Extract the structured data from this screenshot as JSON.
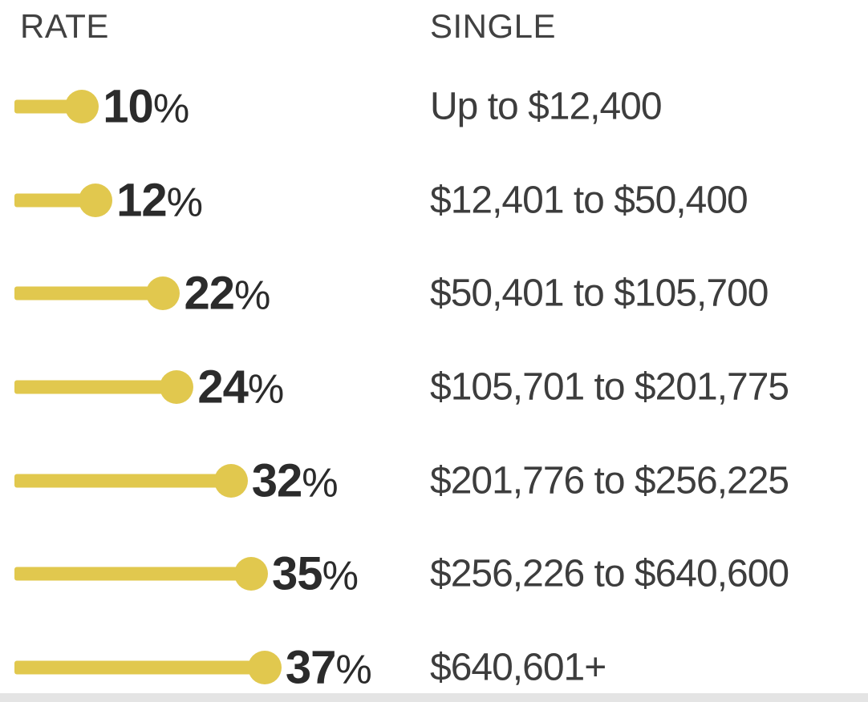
{
  "chart_data": {
    "type": "bar",
    "orientation": "horizontal",
    "title": "",
    "column_headers": {
      "rate": "RATE",
      "single": "SINGLE"
    },
    "categories": [
      "10%",
      "12%",
      "22%",
      "24%",
      "32%",
      "35%",
      "37%"
    ],
    "values": [
      10,
      12,
      22,
      24,
      32,
      35,
      37
    ],
    "bracket_labels": [
      "Up to $12,400",
      "$12,401 to $50,400",
      "$50,401 to $105,700",
      "$105,701 to $201,775",
      "$201,776 to $256,225",
      "$256,226 to $640,600",
      "$640,601+"
    ],
    "rows": [
      {
        "value": 10,
        "rate_label": "10",
        "percent_sign": "%",
        "single": "Up to $12,400"
      },
      {
        "value": 12,
        "rate_label": "12",
        "percent_sign": "%",
        "single": "$12,401 to $50,400"
      },
      {
        "value": 22,
        "rate_label": "22",
        "percent_sign": "%",
        "single": "$50,401 to $105,700"
      },
      {
        "value": 24,
        "rate_label": "24",
        "percent_sign": "%",
        "single": "$105,701 to $201,775"
      },
      {
        "value": 32,
        "rate_label": "32",
        "percent_sign": "%",
        "single": "$201,776 to $256,225"
      },
      {
        "value": 35,
        "rate_label": "35",
        "percent_sign": "%",
        "single": "$256,226 to $640,600"
      },
      {
        "value": 37,
        "rate_label": "37",
        "percent_sign": "%",
        "single": "$640,601+"
      }
    ],
    "bar_color": "#e1c84e",
    "xlim": [
      0,
      40
    ],
    "grid": false,
    "legend": false
  }
}
